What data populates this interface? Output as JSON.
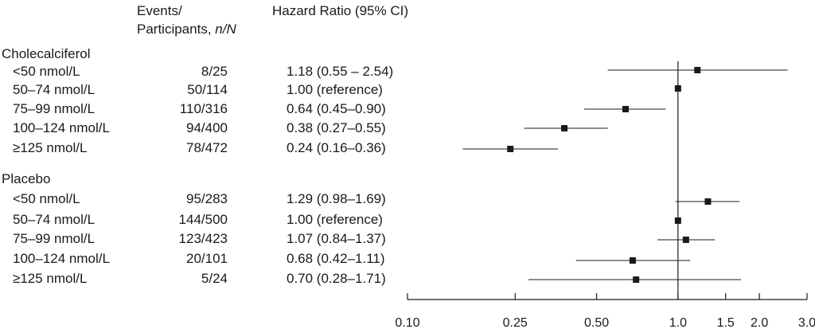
{
  "headers": {
    "events_line1": "Events/",
    "events_line2_prefix": "Participants, ",
    "events_line2_italic": "n/N",
    "hazard": "Hazard Ratio (95% CI)"
  },
  "chart_data": {
    "type": "forest",
    "x_scale": "log",
    "xlim": [
      0.1,
      3.0
    ],
    "reference_line": 1.0,
    "x_ticks": [
      "0.10",
      "0.25",
      "0.50",
      "1.0",
      "1.5",
      "2.0",
      "3.0"
    ],
    "x_tick_values": [
      0.1,
      0.25,
      0.5,
      1.0,
      1.5,
      2.0,
      3.0
    ],
    "groups": [
      {
        "name": "Cholecalciferol",
        "rows": [
          {
            "label": "<50 nmol/L",
            "events": "8/25",
            "hr_text": "1.18 (0.55 – 2.54)",
            "hr": 1.18,
            "lo": 0.55,
            "hi": 2.54
          },
          {
            "label": "50–74 nmol/L",
            "events": "50/114",
            "hr_text": "1.00 (reference)",
            "hr": 1.0,
            "lo": null,
            "hi": null
          },
          {
            "label": "75–99 nmol/L",
            "events": "110/316",
            "hr_text": "0.64 (0.45–0.90)",
            "hr": 0.64,
            "lo": 0.45,
            "hi": 0.9
          },
          {
            "label": "100–124 nmol/L",
            "events": "94/400",
            "hr_text": "0.38 (0.27–0.55)",
            "hr": 0.38,
            "lo": 0.27,
            "hi": 0.55
          },
          {
            "label": "≥125 nmol/L",
            "events": "78/472",
            "hr_text": "0.24 (0.16–0.36)",
            "hr": 0.24,
            "lo": 0.16,
            "hi": 0.36
          }
        ]
      },
      {
        "name": "Placebo",
        "rows": [
          {
            "label": "<50 nmol/L",
            "events": "95/283",
            "hr_text": "1.29 (0.98–1.69)",
            "hr": 1.29,
            "lo": 0.98,
            "hi": 1.69
          },
          {
            "label": "50–74 nmol/L",
            "events": "144/500",
            "hr_text": "1.00 (reference)",
            "hr": 1.0,
            "lo": null,
            "hi": null
          },
          {
            "label": "75–99 nmol/L",
            "events": "123/423",
            "hr_text": "1.07 (0.84–1.37)",
            "hr": 1.07,
            "lo": 0.84,
            "hi": 1.37
          },
          {
            "label": "100–124 nmol/L",
            "events": "20/101",
            "hr_text": "0.68 (0.42–1.11)",
            "hr": 0.68,
            "lo": 0.42,
            "hi": 1.11
          },
          {
            "label": "≥125 nmol/L",
            "events": "5/24",
            "hr_text": "0.70 (0.28–1.71)",
            "hr": 0.7,
            "lo": 0.28,
            "hi": 1.71
          }
        ]
      }
    ]
  }
}
